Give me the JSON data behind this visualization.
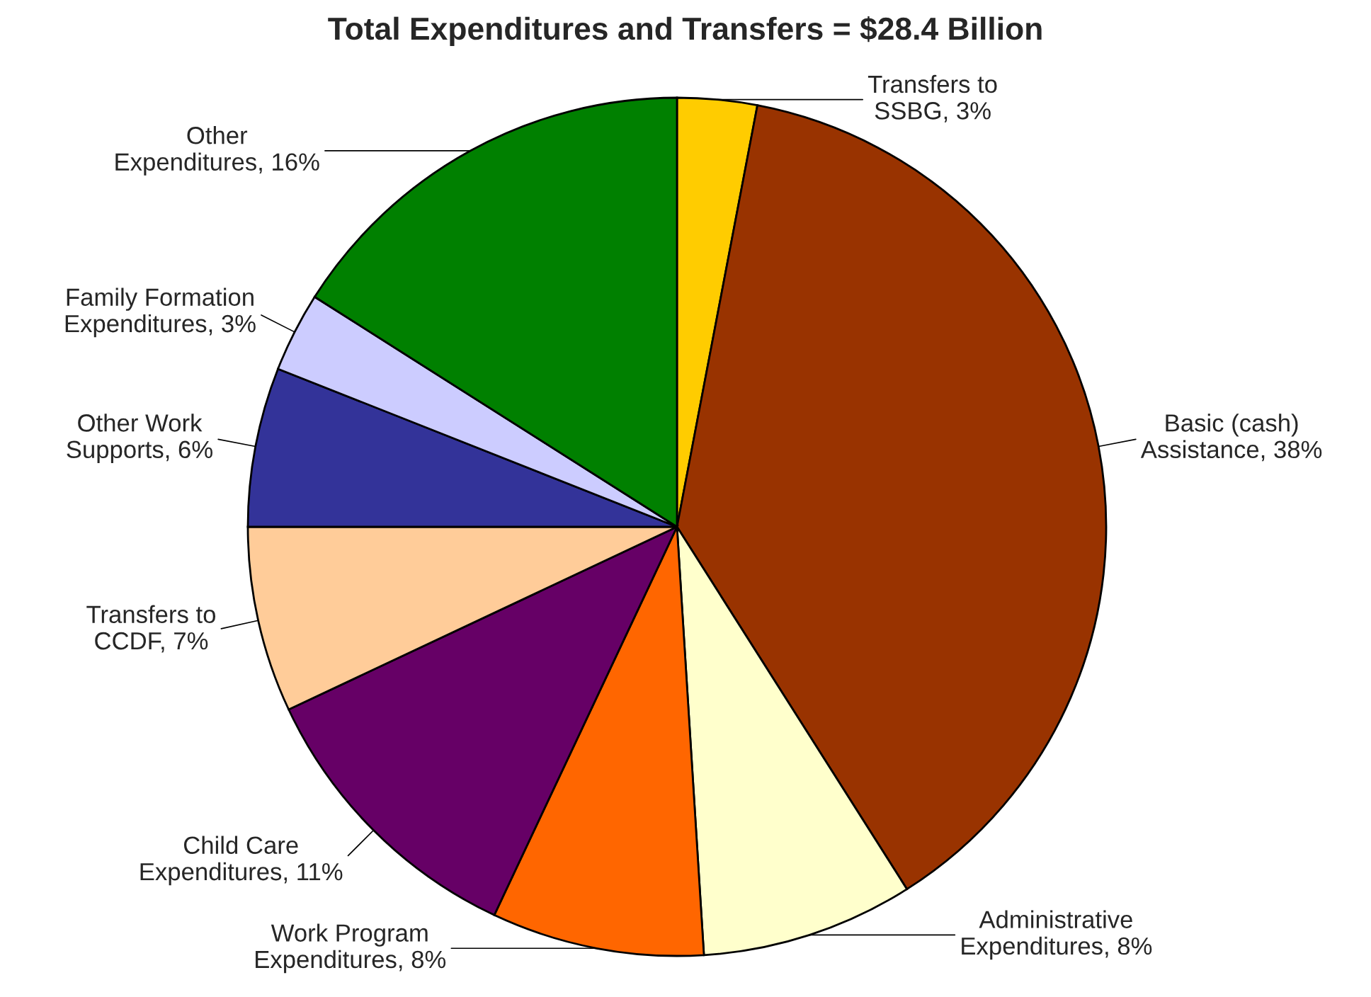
{
  "chart_data": {
    "type": "pie",
    "title": "Total Expenditures and Transfers = $28.4 Billion",
    "categories": [
      "Transfers to SSBG",
      "Basic (cash) Assistance",
      "Administrative Expenditures",
      "Work Program Expenditures",
      "Child Care Expenditures",
      "Transfers to CCDF",
      "Other Work Supports",
      "Family Formation Expenditures",
      "Other Expenditures"
    ],
    "values": [
      3,
      38,
      8,
      8,
      11,
      7,
      6,
      3,
      16
    ],
    "value_labels": [
      "3%",
      "38%",
      "8%",
      "8%",
      "11%",
      "7%",
      "6%",
      "3%",
      "16%"
    ],
    "colors": [
      "#ffcc00",
      "#993300",
      "#ffffcc",
      "#ff6600",
      "#660066",
      "#ffcc99",
      "#333399",
      "#ccccff",
      "#008000"
    ],
    "legend": false
  }
}
